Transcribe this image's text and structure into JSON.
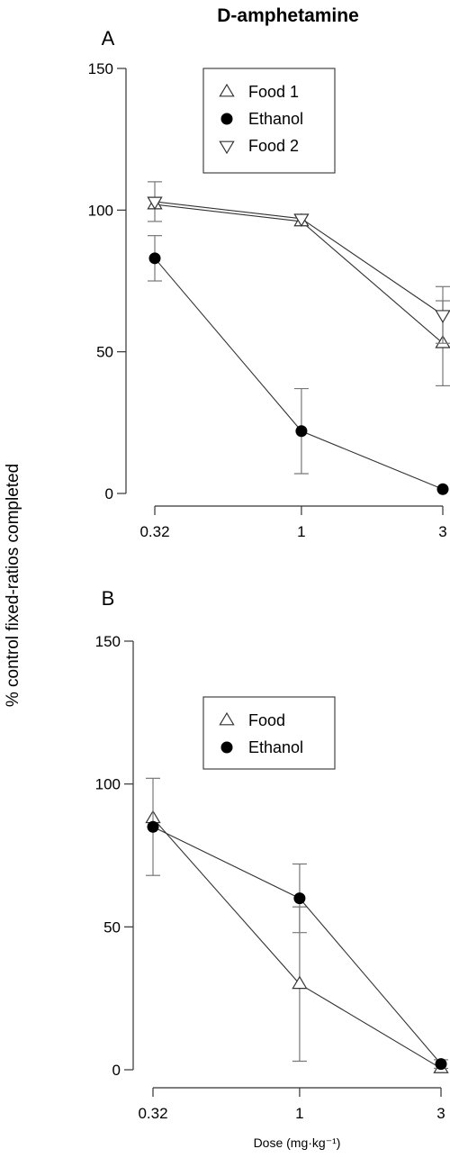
{
  "figure": {
    "title": "D-amphetamine",
    "ylabel": "% control fixed-ratios completed",
    "xlabel": "Dose (mg·kg⁻¹)"
  },
  "chart_data": [
    {
      "panel": "A",
      "type": "line",
      "x_scale": "log",
      "x_categories": [
        "0.32",
        "1",
        "3"
      ],
      "x": [
        0.32,
        1,
        3
      ],
      "ylim": [
        0,
        150
      ],
      "yticks": [
        "0",
        "50",
        "100",
        "150"
      ],
      "legend_position": "top-center",
      "series": [
        {
          "name": "Food 1",
          "marker": "triangle-up-open",
          "values": [
            102,
            96,
            53
          ],
          "errors": [
            null,
            null,
            15
          ]
        },
        {
          "name": "Ethanol",
          "marker": "circle-filled",
          "values": [
            83,
            22,
            1.5
          ],
          "errors": [
            8,
            15,
            null
          ]
        },
        {
          "name": "Food 2",
          "marker": "triangle-down-open",
          "values": [
            103,
            97,
            63
          ],
          "errors": [
            7,
            null,
            10
          ]
        }
      ]
    },
    {
      "panel": "B",
      "type": "line",
      "x_scale": "log",
      "x_categories": [
        "0.32",
        "1",
        "3"
      ],
      "x": [
        0.32,
        1,
        3
      ],
      "ylim": [
        0,
        150
      ],
      "yticks": [
        "0",
        "50",
        "100",
        "150"
      ],
      "legend_position": "center",
      "series": [
        {
          "name": "Food",
          "marker": "triangle-up-open",
          "values": [
            88,
            30,
            0.5
          ],
          "errors": [
            null,
            27,
            null
          ]
        },
        {
          "name": "Ethanol",
          "marker": "circle-filled",
          "values": [
            85,
            60,
            2
          ],
          "errors": [
            17,
            12,
            1.5
          ]
        }
      ]
    }
  ]
}
